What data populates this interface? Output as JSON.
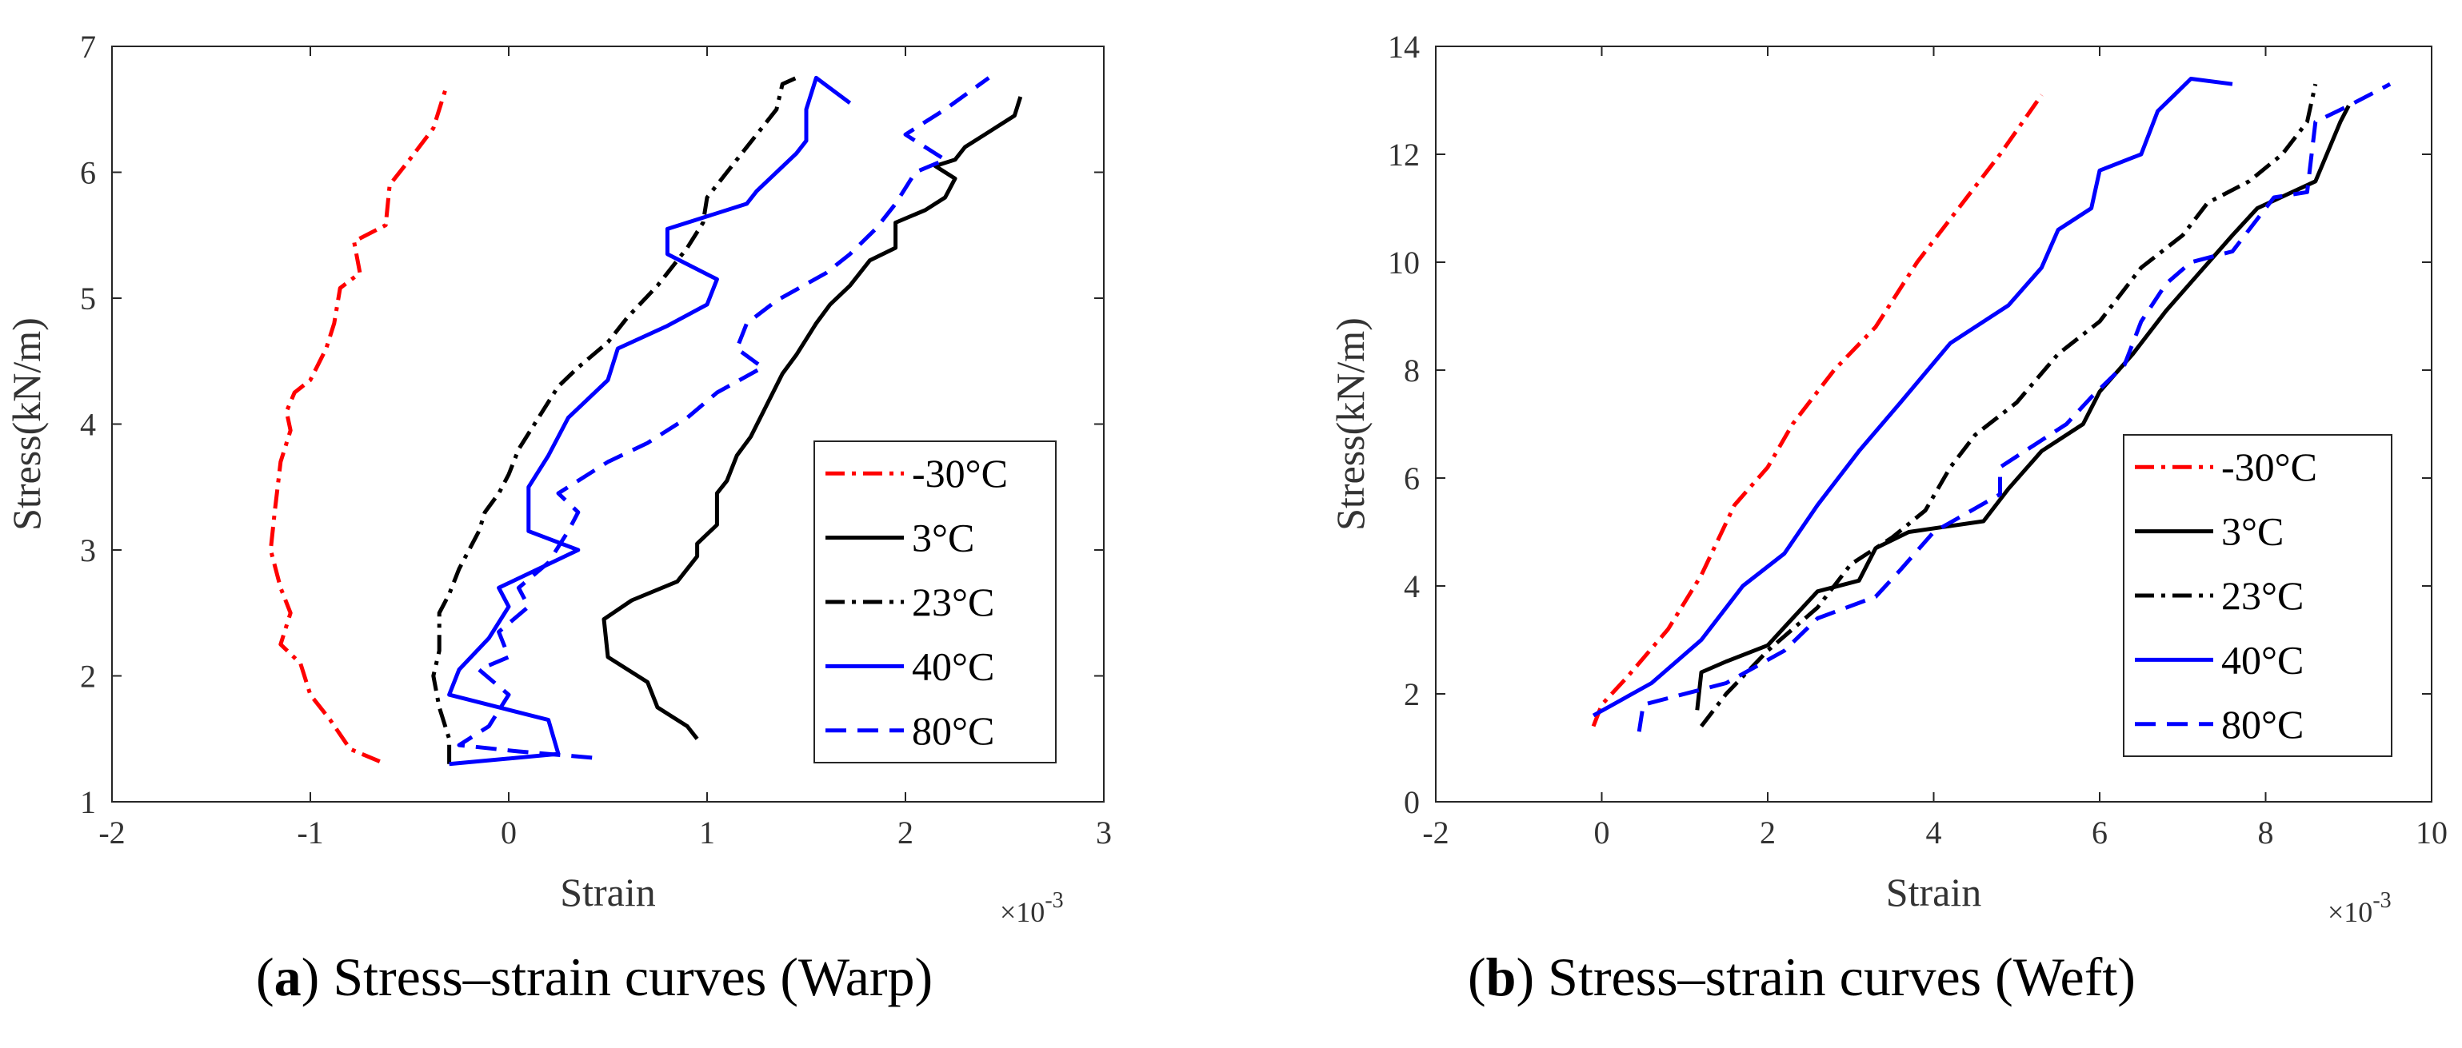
{
  "chart_data": [
    {
      "type": "line",
      "panel": "a",
      "caption_letter": "a",
      "caption_text": "Stress–strain curves (Warp)",
      "xlabel": "Strain",
      "ylabel": "Stress(kN/m)",
      "x_exponent_label": "×10",
      "x_exponent_power": "-3",
      "xlim": [
        -2,
        3
      ],
      "ylim": [
        1,
        7
      ],
      "xticks": [
        "-2",
        "-1",
        "0",
        "1",
        "2",
        "3"
      ],
      "yticks": [
        "1",
        "2",
        "3",
        "4",
        "5",
        "6",
        "7"
      ],
      "legend_position": "lower-right",
      "series": [
        {
          "name": "-30°C",
          "color": "#ff0000",
          "style": "dashdot",
          "points": [
            [
              -0.65,
              1.32
            ],
            [
              -0.8,
              1.42
            ],
            [
              -0.9,
              1.65
            ],
            [
              -1.0,
              1.85
            ],
            [
              -1.05,
              2.1
            ],
            [
              -1.15,
              2.25
            ],
            [
              -1.1,
              2.5
            ],
            [
              -1.15,
              2.7
            ],
            [
              -1.2,
              3.0
            ],
            [
              -1.18,
              3.3
            ],
            [
              -1.15,
              3.7
            ],
            [
              -1.1,
              3.95
            ],
            [
              -1.12,
              4.1
            ],
            [
              -1.08,
              4.25
            ],
            [
              -1.0,
              4.35
            ],
            [
              -0.92,
              4.6
            ],
            [
              -0.88,
              4.8
            ],
            [
              -0.85,
              5.08
            ],
            [
              -0.75,
              5.2
            ],
            [
              -0.78,
              5.45
            ],
            [
              -0.62,
              5.58
            ],
            [
              -0.6,
              5.9
            ],
            [
              -0.5,
              6.1
            ],
            [
              -0.38,
              6.35
            ],
            [
              -0.32,
              6.65
            ]
          ]
        },
        {
          "name": "3°C",
          "color": "#000000",
          "style": "solid",
          "points": [
            [
              0.95,
              1.5
            ],
            [
              0.9,
              1.6
            ],
            [
              0.75,
              1.75
            ],
            [
              0.7,
              1.95
            ],
            [
              0.5,
              2.15
            ],
            [
              0.48,
              2.45
            ],
            [
              0.62,
              2.6
            ],
            [
              0.85,
              2.75
            ],
            [
              0.95,
              2.95
            ],
            [
              0.95,
              3.05
            ],
            [
              1.05,
              3.2
            ],
            [
              1.05,
              3.45
            ],
            [
              1.1,
              3.55
            ],
            [
              1.15,
              3.75
            ],
            [
              1.22,
              3.9
            ],
            [
              1.3,
              4.15
            ],
            [
              1.38,
              4.4
            ],
            [
              1.45,
              4.55
            ],
            [
              1.55,
              4.8
            ],
            [
              1.62,
              4.95
            ],
            [
              1.72,
              5.1
            ],
            [
              1.82,
              5.3
            ],
            [
              1.95,
              5.4
            ],
            [
              1.95,
              5.6
            ],
            [
              2.1,
              5.7
            ],
            [
              2.2,
              5.8
            ],
            [
              2.25,
              5.95
            ],
            [
              2.15,
              6.05
            ],
            [
              2.25,
              6.1
            ],
            [
              2.3,
              6.2
            ],
            [
              2.4,
              6.3
            ],
            [
              2.55,
              6.45
            ],
            [
              2.58,
              6.6
            ]
          ]
        },
        {
          "name": "23°C",
          "color": "#000000",
          "style": "dashdot",
          "points": [
            [
              -0.3,
              1.3
            ],
            [
              -0.3,
              1.5
            ],
            [
              -0.35,
              1.75
            ],
            [
              -0.38,
              2.0
            ],
            [
              -0.35,
              2.2
            ],
            [
              -0.35,
              2.5
            ],
            [
              -0.3,
              2.65
            ],
            [
              -0.25,
              2.85
            ],
            [
              -0.15,
              3.15
            ],
            [
              -0.12,
              3.3
            ],
            [
              -0.05,
              3.45
            ],
            [
              0.0,
              3.6
            ],
            [
              0.05,
              3.8
            ],
            [
              0.15,
              4.05
            ],
            [
              0.25,
              4.3
            ],
            [
              0.35,
              4.45
            ],
            [
              0.5,
              4.65
            ],
            [
              0.6,
              4.85
            ],
            [
              0.75,
              5.1
            ],
            [
              0.9,
              5.4
            ],
            [
              0.98,
              5.6
            ],
            [
              1.0,
              5.8
            ],
            [
              1.1,
              6.0
            ],
            [
              1.25,
              6.3
            ],
            [
              1.35,
              6.5
            ],
            [
              1.38,
              6.7
            ],
            [
              1.45,
              6.75
            ]
          ]
        },
        {
          "name": "40°C",
          "color": "#0000ff",
          "style": "solid",
          "points": [
            [
              -0.3,
              1.3
            ],
            [
              0.25,
              1.38
            ],
            [
              0.2,
              1.65
            ],
            [
              -0.3,
              1.85
            ],
            [
              -0.25,
              2.05
            ],
            [
              -0.1,
              2.3
            ],
            [
              0.0,
              2.55
            ],
            [
              -0.05,
              2.7
            ],
            [
              0.35,
              3.0
            ],
            [
              0.1,
              3.15
            ],
            [
              0.1,
              3.5
            ],
            [
              0.2,
              3.75
            ],
            [
              0.3,
              4.05
            ],
            [
              0.5,
              4.35
            ],
            [
              0.55,
              4.6
            ],
            [
              0.8,
              4.78
            ],
            [
              1.0,
              4.95
            ],
            [
              1.05,
              5.15
            ],
            [
              0.8,
              5.35
            ],
            [
              0.8,
              5.55
            ],
            [
              1.2,
              5.75
            ],
            [
              1.25,
              5.85
            ],
            [
              1.45,
              6.15
            ],
            [
              1.5,
              6.25
            ],
            [
              1.5,
              6.5
            ],
            [
              1.55,
              6.75
            ],
            [
              1.72,
              6.55
            ]
          ]
        },
        {
          "name": "80°C",
          "color": "#0000ff",
          "style": "dashed",
          "points": [
            [
              0.42,
              1.35
            ],
            [
              0.05,
              1.4
            ],
            [
              -0.25,
              1.45
            ],
            [
              -0.1,
              1.6
            ],
            [
              0.0,
              1.85
            ],
            [
              -0.15,
              2.05
            ],
            [
              0.0,
              2.15
            ],
            [
              -0.05,
              2.35
            ],
            [
              0.1,
              2.55
            ],
            [
              0.05,
              2.7
            ],
            [
              0.2,
              2.9
            ],
            [
              0.3,
              3.15
            ],
            [
              0.35,
              3.3
            ],
            [
              0.25,
              3.45
            ],
            [
              0.5,
              3.7
            ],
            [
              0.7,
              3.85
            ],
            [
              0.9,
              4.05
            ],
            [
              1.05,
              4.25
            ],
            [
              1.28,
              4.45
            ],
            [
              1.15,
              4.6
            ],
            [
              1.2,
              4.8
            ],
            [
              1.35,
              4.98
            ],
            [
              1.6,
              5.2
            ],
            [
              1.72,
              5.35
            ],
            [
              1.85,
              5.55
            ],
            [
              1.95,
              5.75
            ],
            [
              2.05,
              6.0
            ],
            [
              2.2,
              6.1
            ],
            [
              2.0,
              6.3
            ],
            [
              2.2,
              6.5
            ],
            [
              2.42,
              6.75
            ]
          ]
        }
      ]
    },
    {
      "type": "line",
      "panel": "b",
      "caption_letter": "b",
      "caption_text": "Stress–strain curves (Weft)",
      "xlabel": "Strain",
      "ylabel": "Stress(kN/m)",
      "x_exponent_label": "×10",
      "x_exponent_power": "-3",
      "xlim": [
        -2,
        10
      ],
      "ylim": [
        0,
        14
      ],
      "xticks": [
        "-2",
        "0",
        "2",
        "4",
        "6",
        "8",
        "10"
      ],
      "yticks": [
        "0",
        "2",
        "4",
        "6",
        "8",
        "10",
        "12",
        "14"
      ],
      "legend_position": "lower-right",
      "series": [
        {
          "name": "-30°C",
          "color": "#ff0000",
          "style": "dashdot",
          "points": [
            [
              -0.1,
              1.4
            ],
            [
              0.0,
              1.8
            ],
            [
              0.3,
              2.3
            ],
            [
              0.8,
              3.2
            ],
            [
              1.2,
              4.2
            ],
            [
              1.6,
              5.5
            ],
            [
              2.0,
              6.2
            ],
            [
              2.3,
              7.0
            ],
            [
              2.8,
              8.0
            ],
            [
              3.3,
              8.8
            ],
            [
              3.8,
              10.0
            ],
            [
              4.3,
              11.0
            ],
            [
              4.8,
              12.0
            ],
            [
              5.3,
              13.1
            ]
          ]
        },
        {
          "name": "3°C",
          "color": "#000000",
          "style": "solid",
          "points": [
            [
              1.15,
              1.7
            ],
            [
              1.2,
              2.4
            ],
            [
              1.5,
              2.6
            ],
            [
              2.0,
              2.9
            ],
            [
              2.3,
              3.4
            ],
            [
              2.6,
              3.9
            ],
            [
              3.1,
              4.1
            ],
            [
              3.3,
              4.7
            ],
            [
              3.7,
              5.0
            ],
            [
              4.6,
              5.2
            ],
            [
              4.9,
              5.8
            ],
            [
              5.3,
              6.5
            ],
            [
              5.8,
              7.0
            ],
            [
              6.0,
              7.6
            ],
            [
              6.4,
              8.3
            ],
            [
              6.8,
              9.1
            ],
            [
              7.2,
              9.8
            ],
            [
              7.6,
              10.5
            ],
            [
              7.9,
              11.0
            ],
            [
              8.6,
              11.5
            ],
            [
              8.9,
              12.6
            ],
            [
              9.0,
              12.9
            ]
          ]
        },
        {
          "name": "23°C",
          "color": "#000000",
          "style": "dashdot",
          "points": [
            [
              1.2,
              1.4
            ],
            [
              1.5,
              2.0
            ],
            [
              2.0,
              2.8
            ],
            [
              2.6,
              3.6
            ],
            [
              3.0,
              4.4
            ],
            [
              3.5,
              4.9
            ],
            [
              3.9,
              5.4
            ],
            [
              4.2,
              6.2
            ],
            [
              4.5,
              6.8
            ],
            [
              5.0,
              7.4
            ],
            [
              5.5,
              8.3
            ],
            [
              6.0,
              8.9
            ],
            [
              6.5,
              9.9
            ],
            [
              7.0,
              10.5
            ],
            [
              7.3,
              11.1
            ],
            [
              7.8,
              11.5
            ],
            [
              8.2,
              12.0
            ],
            [
              8.5,
              12.6
            ],
            [
              8.6,
              13.3
            ]
          ]
        },
        {
          "name": "40°C",
          "color": "#0000ff",
          "style": "solid",
          "points": [
            [
              -0.1,
              1.6
            ],
            [
              0.6,
              2.2
            ],
            [
              1.2,
              3.0
            ],
            [
              1.7,
              4.0
            ],
            [
              2.2,
              4.6
            ],
            [
              2.6,
              5.5
            ],
            [
              3.1,
              6.5
            ],
            [
              3.6,
              7.4
            ],
            [
              4.2,
              8.5
            ],
            [
              4.9,
              9.2
            ],
            [
              5.3,
              9.9
            ],
            [
              5.5,
              10.6
            ],
            [
              5.9,
              11.0
            ],
            [
              6.0,
              11.7
            ],
            [
              6.5,
              12.0
            ],
            [
              6.7,
              12.8
            ],
            [
              6.9,
              13.1
            ],
            [
              7.1,
              13.4
            ],
            [
              7.6,
              13.3
            ]
          ]
        },
        {
          "name": "80°C",
          "color": "#0000ff",
          "style": "dashed",
          "points": [
            [
              0.45,
              1.3
            ],
            [
              0.5,
              1.8
            ],
            [
              1.5,
              2.2
            ],
            [
              2.2,
              2.8
            ],
            [
              2.6,
              3.4
            ],
            [
              3.3,
              3.8
            ],
            [
              3.6,
              4.3
            ],
            [
              4.0,
              5.0
            ],
            [
              4.8,
              5.7
            ],
            [
              4.8,
              6.2
            ],
            [
              5.2,
              6.6
            ],
            [
              5.6,
              7.0
            ],
            [
              5.9,
              7.5
            ],
            [
              6.3,
              8.1
            ],
            [
              6.5,
              8.9
            ],
            [
              6.8,
              9.6
            ],
            [
              7.1,
              10.0
            ],
            [
              7.6,
              10.2
            ],
            [
              7.9,
              10.8
            ],
            [
              8.1,
              11.2
            ],
            [
              8.5,
              11.3
            ],
            [
              8.6,
              12.6
            ],
            [
              9.0,
              12.9
            ],
            [
              9.5,
              13.3
            ]
          ]
        }
      ]
    }
  ]
}
